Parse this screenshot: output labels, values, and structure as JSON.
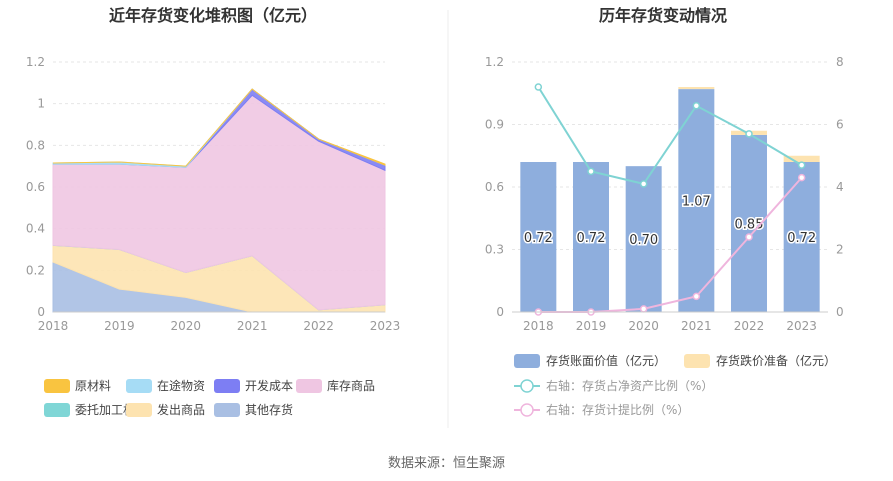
{
  "source_label": "数据来源：恒生聚源",
  "chart_data": [
    {
      "type": "area",
      "stacked": true,
      "title": "近年存货变化堆积图（亿元）",
      "x": [
        "2018",
        "2019",
        "2020",
        "2021",
        "2022",
        "2023"
      ],
      "yticks": [
        "0",
        "0.2",
        "0.4",
        "0.6",
        "0.8",
        "1",
        "1.2"
      ],
      "ylim": [
        0,
        1.2
      ],
      "series": [
        {
          "name": "原材料",
          "color": "#f9c440",
          "values": [
            0,
            0,
            0,
            0,
            0,
            0.005
          ]
        },
        {
          "name": "在途物资",
          "color": "#a6dcf5",
          "values": [
            0.005,
            0.01,
            0.005,
            0,
            0,
            0
          ]
        },
        {
          "name": "开发成本",
          "color": "#7d7ef3",
          "values": [
            0,
            0,
            0,
            0.03,
            0.01,
            0.025
          ]
        },
        {
          "name": "库存商品",
          "color": "#efc6e2",
          "values": [
            0.39,
            0.41,
            0.505,
            0.77,
            0.81,
            0.645
          ]
        },
        {
          "name": "委托加工材料",
          "color": "#7fd6d6",
          "values": [
            0,
            0,
            0,
            0,
            0,
            0
          ]
        },
        {
          "name": "发出商品",
          "color": "#fde3b0",
          "values": [
            0.08,
            0.19,
            0.12,
            0.27,
            0.01,
            0.035
          ]
        },
        {
          "name": "其他存货",
          "color": "#a9bfe3",
          "values": [
            0.24,
            0.11,
            0.07,
            0,
            0,
            0
          ]
        }
      ],
      "legend_position": "bottom"
    },
    {
      "type": "bar",
      "title": "历年存货变动情况",
      "categories": [
        "2018",
        "2019",
        "2020",
        "2021",
        "2022",
        "2023"
      ],
      "ylim": [
        0,
        1.2
      ],
      "yticks": [
        "0",
        "0.3",
        "0.6",
        "0.9",
        "1.2"
      ],
      "y2lim": [
        0,
        8
      ],
      "y2ticks": [
        "0",
        "2",
        "4",
        "6",
        "8"
      ],
      "series": [
        {
          "name": "存货账面价值（亿元）",
          "kind": "bar",
          "color": "#8eaedd",
          "values": [
            0.72,
            0.72,
            0.7,
            1.07,
            0.85,
            0.72
          ],
          "labels": [
            "0.72",
            "0.72",
            "0.70",
            "1.07",
            "0.85",
            "0.72"
          ]
        },
        {
          "name": "存货跌价准备（亿元）",
          "kind": "bar",
          "color": "#fde3b0",
          "values": [
            0,
            0,
            0,
            0.01,
            0.02,
            0.03
          ]
        },
        {
          "name": "右轴：存货占净资产比例（%）",
          "kind": "line",
          "axis": "right",
          "color": "#7fd3d3",
          "values": [
            7.2,
            4.5,
            4.1,
            6.6,
            5.7,
            4.7
          ]
        },
        {
          "name": "右轴：存货计提比例（%）",
          "kind": "line",
          "axis": "right",
          "color": "#efb5dd",
          "values": [
            0,
            0,
            0.1,
            0.5,
            2.4,
            4.3
          ]
        }
      ],
      "legend_position": "bottom"
    }
  ]
}
